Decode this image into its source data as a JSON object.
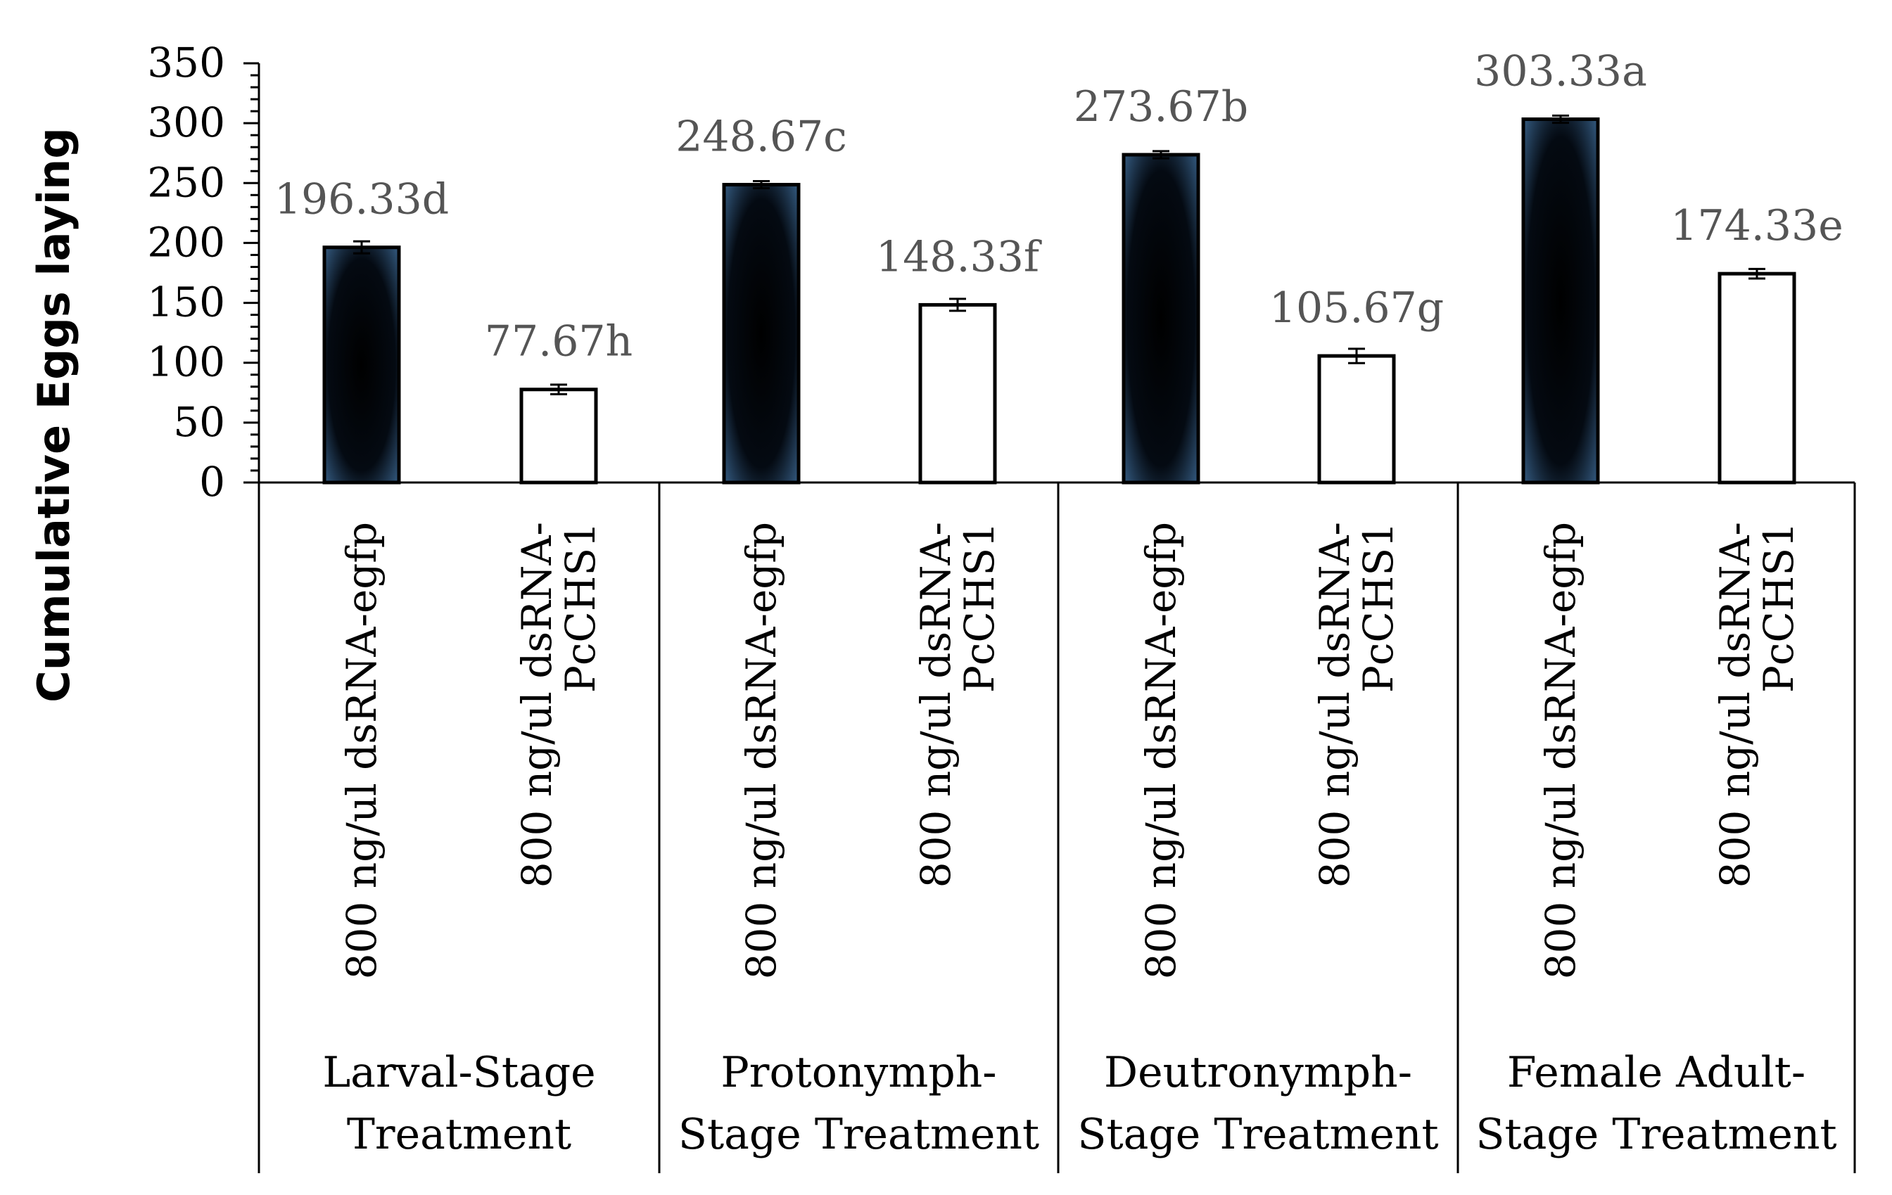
{
  "chart_data": {
    "type": "bar",
    "ylabel": "Cumulative Eggs  laying",
    "ylim": [
      0,
      350
    ],
    "yticks": [
      0,
      50,
      100,
      150,
      200,
      250,
      300,
      350
    ],
    "yticks_labels": [
      "0",
      "50",
      "100",
      "150",
      "200",
      "250",
      "300",
      "350"
    ],
    "groups": [
      {
        "label_lines": [
          "Larval-Stage",
          "Treatment"
        ]
      },
      {
        "label_lines": [
          "Protonymph-",
          "Stage Treatment"
        ]
      },
      {
        "label_lines": [
          "Deutronymph-",
          "Stage Treatment"
        ]
      },
      {
        "label_lines": [
          "Female Adult-",
          "Stage Treatment"
        ]
      }
    ],
    "bars": [
      {
        "group": 0,
        "label_lines": [
          "800 ng/ul dsRNA-egfp"
        ],
        "value": 196.33,
        "error": 5,
        "data_label": "196.33d",
        "style": "dark"
      },
      {
        "group": 0,
        "label_lines": [
          "800 ng/ul dsRNA-",
          "PcCHS1"
        ],
        "value": 77.67,
        "error": 4,
        "data_label": "77.67h",
        "style": "white"
      },
      {
        "group": 1,
        "label_lines": [
          "800 ng/ul dsRNA-egfp"
        ],
        "value": 248.67,
        "error": 3,
        "data_label": "248.67c",
        "style": "dark"
      },
      {
        "group": 1,
        "label_lines": [
          "800 ng/ul dsRNA-",
          "PcCHS1"
        ],
        "value": 148.33,
        "error": 5,
        "data_label": "148.33f",
        "style": "white"
      },
      {
        "group": 2,
        "label_lines": [
          "800 ng/ul dsRNA-egfp"
        ],
        "value": 273.67,
        "error": 3,
        "data_label": "273.67b",
        "style": "dark"
      },
      {
        "group": 2,
        "label_lines": [
          "800 ng/ul dsRNA-",
          "PcCHS1"
        ],
        "value": 105.67,
        "error": 6,
        "data_label": "105.67g",
        "style": "white"
      },
      {
        "group": 3,
        "label_lines": [
          "800 ng/ul dsRNA-egfp"
        ],
        "value": 303.33,
        "error": 3,
        "data_label": "303.33a",
        "style": "dark"
      },
      {
        "group": 3,
        "label_lines": [
          "800 ng/ul dsRNA-",
          "PcCHS1"
        ],
        "value": 174.33,
        "error": 4,
        "data_label": "174.33e",
        "style": "white"
      }
    ],
    "colors": {
      "dark_fill": "#000000",
      "dark_glow": "#3d6a96",
      "white_fill": "#ffffff",
      "outline": "#000000"
    }
  }
}
